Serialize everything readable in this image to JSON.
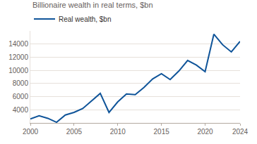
{
  "chart_data": {
    "type": "line",
    "title": "Billionaire wealth in real terms, $bn",
    "x": [
      2000,
      2001,
      2002,
      2003,
      2004,
      2005,
      2006,
      2007,
      2008,
      2009,
      2010,
      2011,
      2012,
      2013,
      2014,
      2015,
      2016,
      2017,
      2018,
      2019,
      2020,
      2021,
      2022,
      2023,
      2024
    ],
    "series": [
      {
        "name": "Real wealth, $bn",
        "color": "#0f5499",
        "values": [
          2600,
          3100,
          2700,
          2100,
          3200,
          3600,
          4200,
          5400,
          6500,
          3600,
          5200,
          6400,
          6300,
          7400,
          8700,
          9500,
          8600,
          9900,
          11500,
          10800,
          9800,
          15500,
          13900,
          12800,
          14400
        ]
      }
    ],
    "xlim": [
      2000,
      2024
    ],
    "xticks": [
      2000,
      2005,
      2010,
      2015,
      2020,
      2024
    ],
    "ylim": [
      2000,
      16000
    ],
    "yticks": [
      4000,
      6000,
      8000,
      10000,
      12000,
      14000
    ],
    "grid": true,
    "legend": "top-left"
  }
}
